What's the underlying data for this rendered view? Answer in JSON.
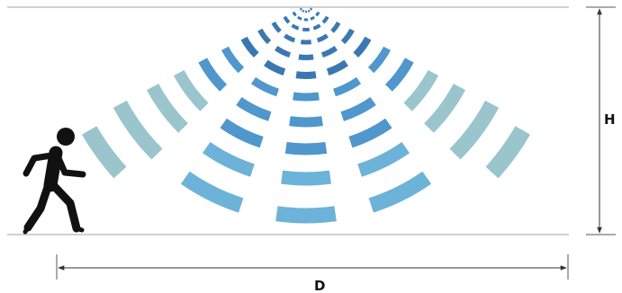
{
  "labels": {
    "height": "H",
    "distance": "D"
  },
  "icons": {
    "person": "running-person-icon",
    "sensor": "motion-sensor-waves-icon"
  },
  "colors": {
    "line": "#9a9a9a",
    "arrow": "#333333",
    "person": "#111111",
    "wave_near": "#3a78b2",
    "wave_mid": "#4f97cc",
    "wave_far": "#6db2d8",
    "wave_edge": "#9ac5cd"
  }
}
